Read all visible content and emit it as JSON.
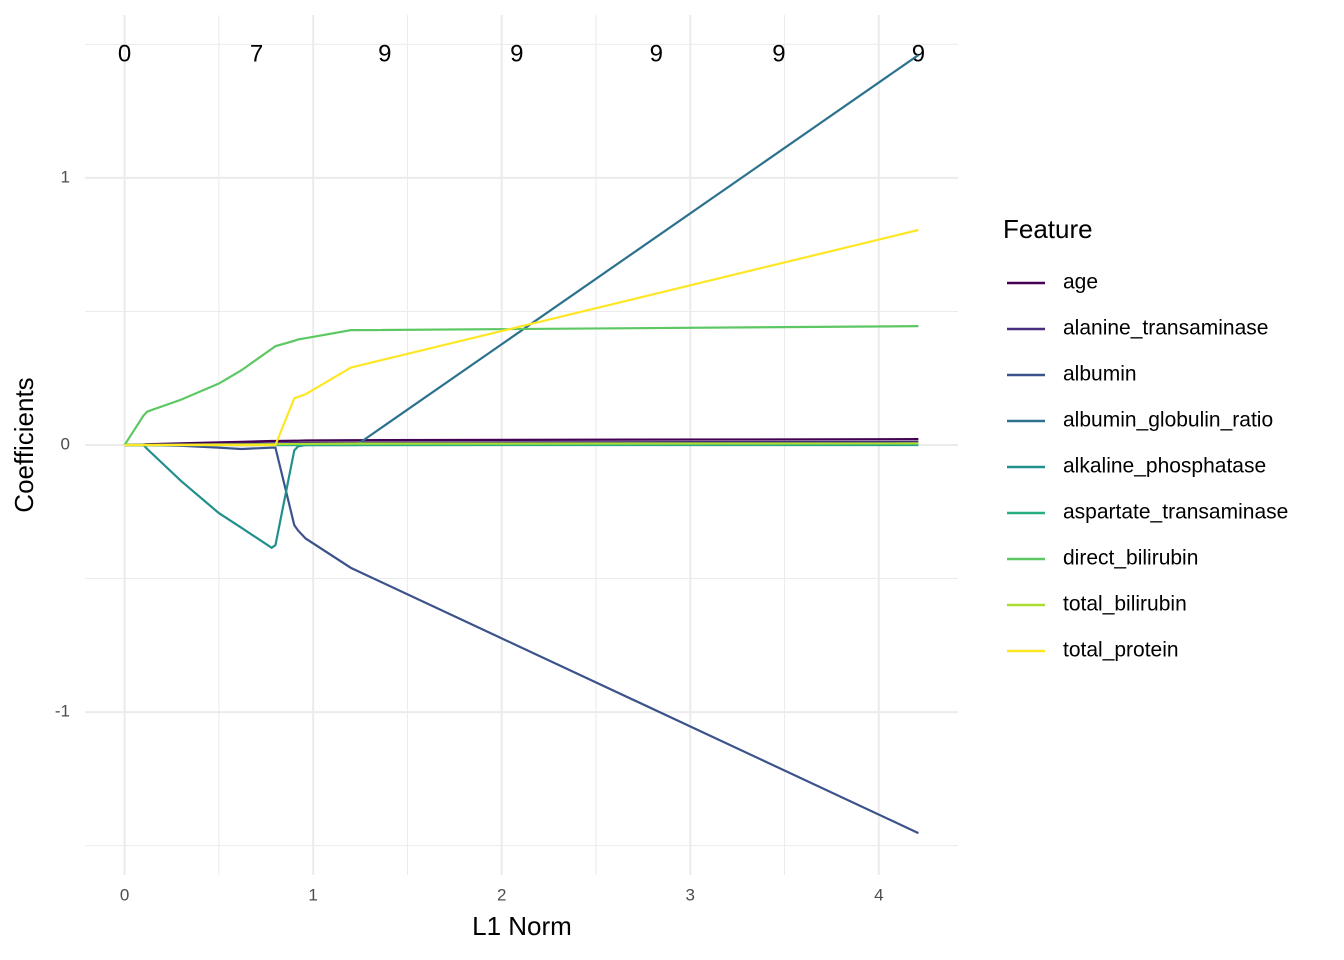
{
  "chart_data": {
    "type": "line",
    "x_label": "L1 Norm",
    "y_label": "Coefficients",
    "legend_title": "Feature",
    "legend_position": "right",
    "grid": true,
    "xlim": [
      -0.21,
      4.42
    ],
    "ylim": [
      -1.61,
      1.61
    ],
    "xticks": [
      0,
      1,
      2,
      3,
      4
    ],
    "yticks": [
      -1,
      0,
      1
    ],
    "xminor": [
      0.5,
      1.5,
      2.5,
      3.5
    ],
    "yminor": [
      -1.5,
      -0.5,
      0.5,
      1.5
    ],
    "x2ticks": [
      {
        "value": 0,
        "label": "0"
      },
      {
        "value": 0.7,
        "label": "7"
      },
      {
        "value": 1.38,
        "label": "9"
      },
      {
        "value": 2.08,
        "label": "9"
      },
      {
        "value": 2.82,
        "label": "9"
      },
      {
        "value": 3.47,
        "label": "9"
      },
      {
        "value": 4.21,
        "label": "9"
      }
    ],
    "x": [
      0,
      0.1,
      0.12,
      0.3,
      0.5,
      0.62,
      0.78,
      0.8,
      0.9,
      0.92,
      0.96,
      1.2,
      1.23,
      4.21
    ],
    "series": [
      {
        "name": "age",
        "color": "#440154",
        "values": [
          0,
          0.002,
          0.003,
          0.006,
          0.01,
          0.012,
          0.015,
          0.015,
          0.016,
          0.016,
          0.017,
          0.018,
          0.018,
          0.022
        ]
      },
      {
        "name": "alanine_transaminase",
        "color": "#472D7B",
        "values": [
          0,
          0,
          0,
          0.002,
          0.004,
          0.005,
          0.006,
          0.006,
          0.007,
          0.007,
          0.008,
          0.009,
          0.009,
          0.012
        ]
      },
      {
        "name": "albumin",
        "color": "#3B528B",
        "values": [
          0,
          0,
          0,
          -0.003,
          -0.01,
          -0.015,
          -0.01,
          -0.01,
          -0.3,
          -0.32,
          -0.35,
          -0.46,
          -0.47,
          -1.453
        ]
      },
      {
        "name": "albumin_globulin_ratio",
        "color": "#2C728E",
        "values": [
          0,
          0,
          0,
          0,
          0,
          0,
          0,
          0,
          0,
          0,
          0,
          0,
          0,
          1.46
        ]
      },
      {
        "name": "alkaline_phosphatase",
        "color": "#21908C",
        "values": [
          0,
          0,
          -0.015,
          -0.135,
          -0.255,
          -0.31,
          -0.385,
          -0.375,
          -0.02,
          -0.005,
          0,
          0,
          0,
          0
        ]
      },
      {
        "name": "aspartate_transaminase",
        "color": "#27AD81",
        "values": [
          0,
          0,
          0,
          0,
          0,
          0,
          0,
          0,
          0,
          0,
          0,
          0,
          0,
          0.002
        ]
      },
      {
        "name": "direct_bilirubin",
        "color": "#5DC863",
        "values": [
          0,
          0.11,
          0.125,
          0.17,
          0.23,
          0.28,
          0.36,
          0.37,
          0.39,
          0.395,
          0.4,
          0.43,
          0.43,
          0.445
        ]
      },
      {
        "name": "total_bilirubin",
        "color": "#AADC32",
        "values": [
          0,
          0,
          0,
          0.001,
          0.002,
          0.002,
          0.003,
          0.003,
          0.004,
          0.004,
          0.004,
          0.005,
          0.005,
          0.006
        ]
      },
      {
        "name": "total_protein",
        "color": "#FDE725",
        "values": [
          0,
          0,
          0,
          0,
          0,
          0,
          0,
          0,
          0.175,
          0.18,
          0.19,
          0.29,
          0.295,
          0.805
        ]
      }
    ]
  }
}
